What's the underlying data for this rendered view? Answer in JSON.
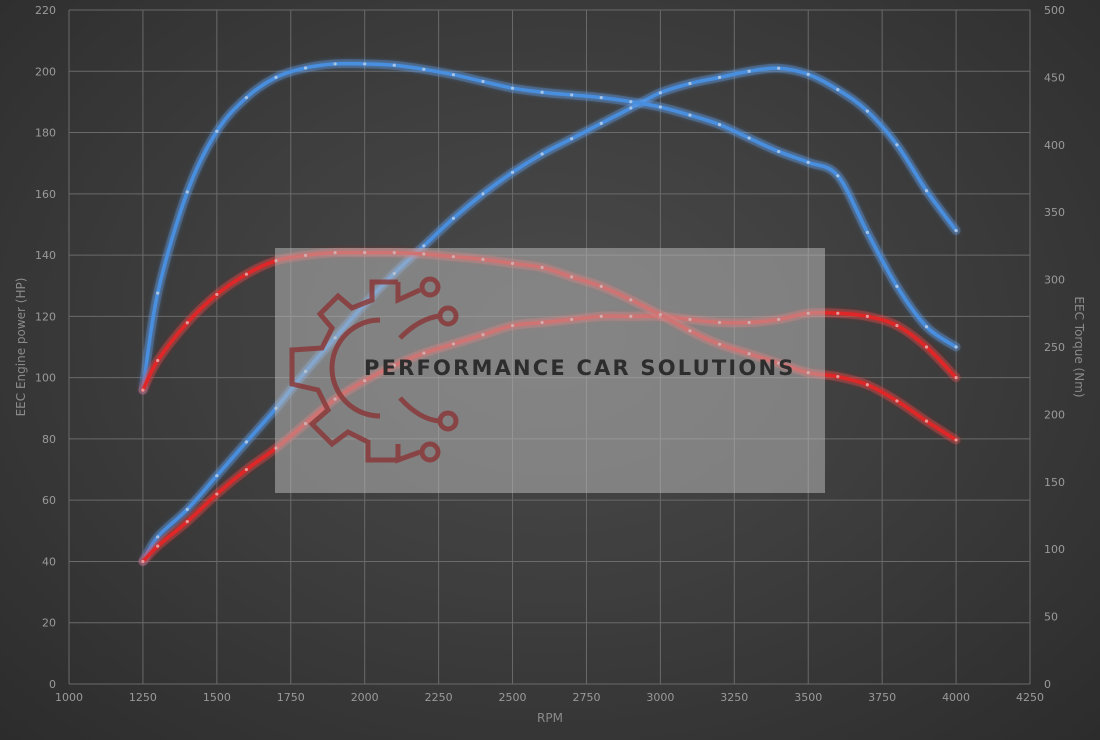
{
  "chart_data": {
    "type": "line",
    "xlabel": "RPM",
    "ylabel_left": "EEC Engine power (HP)",
    "ylabel_right": "EEC Torque (Nm)",
    "x_ticks": [
      "1000",
      "1250",
      "1500",
      "1750",
      "2000",
      "2250",
      "2500",
      "2750",
      "3000",
      "3250",
      "3500",
      "3750",
      "4000",
      "4250"
    ],
    "y_left_ticks": [
      "0",
      "20",
      "40",
      "60",
      "80",
      "100",
      "120",
      "140",
      "160",
      "180",
      "200",
      "220"
    ],
    "y_right_ticks": [
      "0",
      "50",
      "100",
      "150",
      "200",
      "250",
      "300",
      "350",
      "400",
      "450",
      "500"
    ],
    "xlim": [
      1000,
      4250
    ],
    "ylim_left": [
      0,
      220
    ],
    "ylim_right": [
      0,
      500
    ],
    "grid": true,
    "colors": {
      "tuned": "#4a8fe0",
      "stock": "#e02828",
      "tuned_glow": "#7ab4ff",
      "stock_glow": "#ff6a6a"
    },
    "series": [
      {
        "kind": "power",
        "variant": "tuned",
        "axis": "left",
        "x": [
          1250,
          1300,
          1400,
          1500,
          1600,
          1700,
          1800,
          1900,
          2000,
          2100,
          2200,
          2300,
          2400,
          2500,
          2600,
          2700,
          2800,
          2900,
          3000,
          3100,
          3200,
          3300,
          3400,
          3500,
          3600,
          3700,
          3800,
          3900,
          4000
        ],
        "y": [
          40,
          48,
          57,
          68,
          79,
          90,
          102,
          113,
          124,
          134,
          143,
          152,
          160,
          167,
          173,
          178,
          183,
          188,
          193,
          196,
          198,
          200,
          201,
          199,
          194,
          187,
          176,
          161,
          148
        ]
      },
      {
        "kind": "torque",
        "variant": "tuned",
        "axis": "right",
        "x": [
          1250,
          1300,
          1400,
          1500,
          1600,
          1700,
          1800,
          1900,
          2000,
          2100,
          2200,
          2300,
          2400,
          2500,
          2600,
          2700,
          2800,
          2900,
          3000,
          3100,
          3200,
          3300,
          3400,
          3500,
          3600,
          3700,
          3800,
          3900,
          4000
        ],
        "y": [
          218,
          290,
          365,
          410,
          435,
          450,
          457,
          460,
          460,
          459,
          456,
          452,
          447,
          442,
          439,
          437,
          435,
          432,
          428,
          422,
          415,
          405,
          395,
          387,
          377,
          335,
          295,
          265,
          250
        ]
      },
      {
        "kind": "power",
        "variant": "stock",
        "axis": "left",
        "x": [
          1250,
          1300,
          1400,
          1500,
          1600,
          1700,
          1800,
          1900,
          2000,
          2100,
          2200,
          2300,
          2400,
          2500,
          2600,
          2700,
          2800,
          2900,
          3000,
          3100,
          3200,
          3300,
          3400,
          3500,
          3600,
          3700,
          3800,
          3900,
          4000
        ],
        "y": [
          40,
          45,
          53,
          62,
          70,
          77,
          85,
          93,
          99,
          104,
          108,
          111,
          114,
          117,
          118,
          119,
          120,
          120,
          120,
          119,
          118,
          118,
          119,
          121,
          121,
          120,
          117,
          110,
          100
        ]
      },
      {
        "kind": "torque",
        "variant": "stock",
        "axis": "right",
        "x": [
          1250,
          1300,
          1400,
          1500,
          1600,
          1700,
          1800,
          1900,
          2000,
          2100,
          2200,
          2300,
          2400,
          2500,
          2600,
          2700,
          2800,
          2900,
          3000,
          3100,
          3200,
          3300,
          3400,
          3500,
          3600,
          3700,
          3800,
          3900,
          4000
        ],
        "y": [
          218,
          240,
          268,
          289,
          304,
          314,
          318,
          320,
          320,
          320,
          319,
          317,
          315,
          312,
          309,
          302,
          295,
          285,
          274,
          262,
          252,
          245,
          238,
          231,
          228,
          222,
          210,
          195,
          181
        ]
      }
    ]
  },
  "watermark": {
    "text": "PERFORMANCE CAR SOLUTIONS",
    "logo_color": "#8a3a3a"
  }
}
